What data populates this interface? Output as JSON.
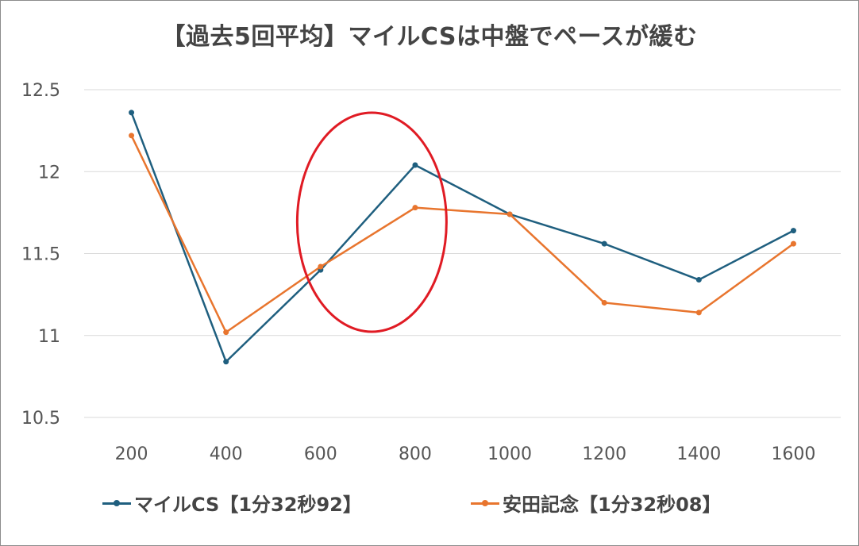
{
  "chart_data": {
    "type": "line",
    "title": "【過去5回平均】マイルCSは中盤でペースが緩む",
    "categories": [
      "200",
      "400",
      "600",
      "800",
      "1000",
      "1200",
      "1400",
      "1600"
    ],
    "ylim": [
      10.5,
      12.5
    ],
    "yticks": [
      "10.5",
      "11",
      "11.5",
      "12",
      "12.5"
    ],
    "ytick_values": [
      10.5,
      11,
      11.5,
      12,
      12.5
    ],
    "grid": true,
    "legend_position": "bottom",
    "series": [
      {
        "name": "マイルCS【1分32秒92】",
        "color": "#1f5f7f",
        "values": [
          12.36,
          10.84,
          11.4,
          12.04,
          11.74,
          11.56,
          11.34,
          11.64
        ]
      },
      {
        "name": "安田記念【1分32秒08】",
        "color": "#e8752e",
        "values": [
          12.22,
          11.02,
          11.42,
          11.78,
          11.74,
          11.2,
          11.14,
          11.56
        ]
      }
    ],
    "annotation": {
      "shape": "ellipse",
      "color": "#e01b24",
      "around_categories": [
        "600",
        "800"
      ]
    }
  }
}
